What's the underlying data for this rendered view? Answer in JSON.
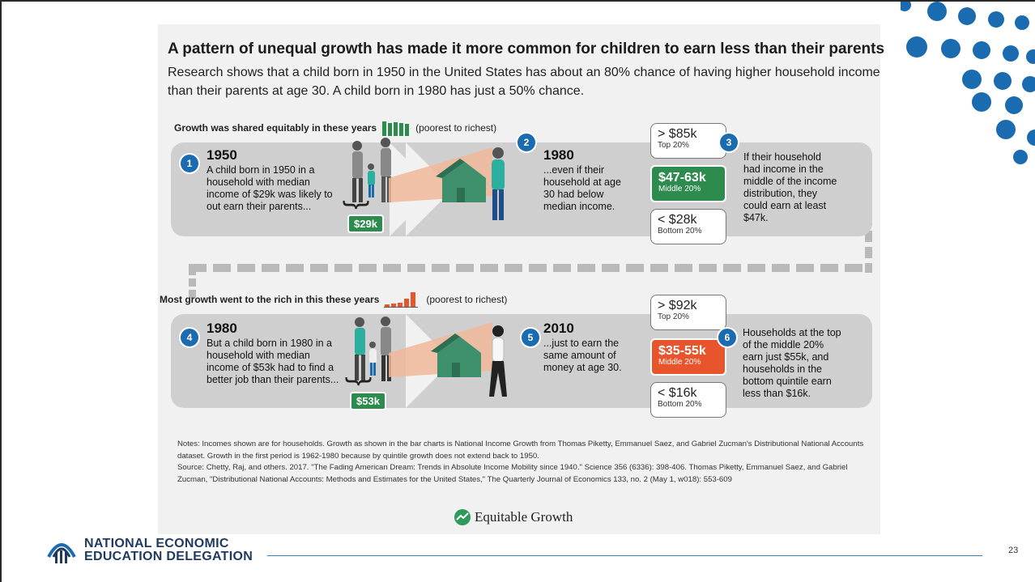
{
  "slide": {
    "title": "A pattern of unequal growth has made it more common for children to earn less than their parents",
    "intro": "Research shows that a child born in 1950 in the United States has about an 80% chance of having higher household income than their parents at age 30. A child born in 1980 has just a 50% chance.",
    "page_number": "23"
  },
  "top": {
    "label_bold": "Growth was shared equitably in these years",
    "label_suffix": "(poorest to richest)",
    "bar_color": "#2d8b4e",
    "step1": {
      "num": "1",
      "year": "1950",
      "text": "A child born in 1950 in a household with median income of $29k was likely to out earn their parents...",
      "tag": "$29k"
    },
    "step2": {
      "num": "2",
      "year": "1980",
      "text": "...even if their household at age 30 had below median income."
    },
    "step3": {
      "num": "3",
      "text": "If their household had income in the middle of the income distribution, they could earn at least $47k."
    },
    "top_box": {
      "amount": "> $85k",
      "label": "Top 20%"
    },
    "mid_box": {
      "amount": "$47-63k",
      "label": "Middle 20%",
      "color": "#2d8b4e"
    },
    "bot_box": {
      "amount": "< $28k",
      "label": "Bottom 20%"
    }
  },
  "bottom": {
    "label_bold": "Most growth went to the rich in this these years",
    "label_suffix": "(poorest to richest)",
    "bar_color": "#e8542b",
    "step4": {
      "num": "4",
      "year": "1980",
      "text": "But a child born in 1980 in a household with median income of $53k had to find a better job than their parents...",
      "tag": "$53k"
    },
    "step5": {
      "num": "5",
      "year": "2010",
      "text": "...just to earn the same amount of money at age 30."
    },
    "step6": {
      "num": "6",
      "text": "Households at the top of the middle 20% earn just $55k, and households in the bottom quintile earn less than $16k."
    },
    "top_box": {
      "amount": "> $92k",
      "label": "Top 20%"
    },
    "mid_box": {
      "amount": "$35-55k",
      "label": "Middle 20%",
      "color": "#e8542b"
    },
    "bot_box": {
      "amount": "< $16k",
      "label": "Bottom 20%"
    }
  },
  "notes": {
    "line1": "Notes: Incomes shown are for households. Growth as shown in the bar charts is National Income Growth from Thomas Piketty, Emmanuel Saez, and Gabriel Zucman's Distributional National Accounts dataset. Growth in the first period is 1962-1980 because by quintile growth does not extend back to 1950.",
    "line2": "Source: Chetty, Raj, and others. 2017. \"The Fading American Dream: Trends in Absolute Income Mobility since 1940.\" Science 356 (6336): 398-406. Thomas Piketty, Emmanuel Saez, and Gabriel Zucman, \"Distributional National Accounts: Methods and Estimates for the United States,\" The Quarterly Journal of Economics 133, no. 2 (May 1, w018): 553-609"
  },
  "brand": {
    "name": "Equitable Growth"
  },
  "footer": {
    "org_line1": "NATIONAL ECONOMIC",
    "org_line2": "EDUCATION DELEGATION"
  },
  "colors": {
    "dots": "#1b6bb0",
    "accent_green": "#2d8b4e",
    "accent_orange": "#e8542b",
    "badge_blue": "#1b6bb0"
  }
}
